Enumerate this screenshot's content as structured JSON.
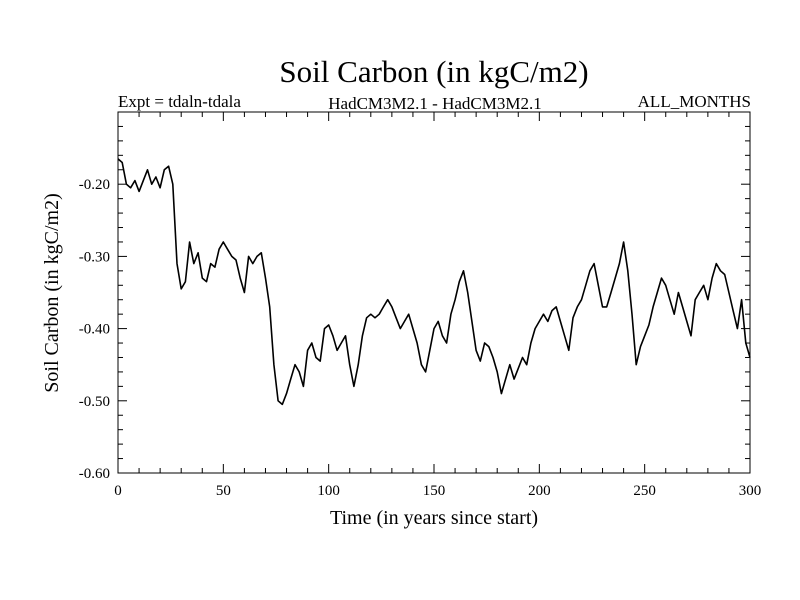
{
  "chart_data": {
    "type": "line",
    "title": "Soil Carbon (in kgC/m2)",
    "subtitle_left": "Expt = tdaln-tdala",
    "subtitle_center": "HadCM3M2.1 - HadCM3M2.1",
    "subtitle_right": "ALL_MONTHS",
    "xlabel": "Time (in years since start)",
    "ylabel": "Soil Carbon (in kgC/m2)",
    "xlim": [
      0,
      300
    ],
    "ylim": [
      -0.6,
      -0.1
    ],
    "xticks": [
      0,
      50,
      100,
      150,
      200,
      250,
      300
    ],
    "xtick_labels": [
      "0",
      "50",
      "100",
      "150",
      "200",
      "250",
      "300"
    ],
    "yticks": [
      -0.6,
      -0.5,
      -0.4,
      -0.3,
      -0.2
    ],
    "ytick_labels": [
      "-0.60",
      "-0.50",
      "-0.40",
      "-0.30",
      "-0.20"
    ],
    "series": [
      {
        "name": "Soil Carbon",
        "x": [
          0,
          2,
          4,
          6,
          8,
          10,
          12,
          14,
          16,
          18,
          20,
          22,
          24,
          26,
          28,
          30,
          32,
          34,
          36,
          38,
          40,
          42,
          44,
          46,
          48,
          50,
          52,
          54,
          56,
          58,
          60,
          62,
          64,
          66,
          68,
          70,
          72,
          74,
          76,
          78,
          80,
          82,
          84,
          86,
          88,
          90,
          92,
          94,
          96,
          98,
          100,
          102,
          104,
          106,
          108,
          110,
          112,
          114,
          116,
          118,
          120,
          122,
          124,
          126,
          128,
          130,
          132,
          134,
          136,
          138,
          140,
          142,
          144,
          146,
          148,
          150,
          152,
          154,
          156,
          158,
          160,
          162,
          164,
          166,
          168,
          170,
          172,
          174,
          176,
          178,
          180,
          182,
          184,
          186,
          188,
          190,
          192,
          194,
          196,
          198,
          200,
          202,
          204,
          206,
          208,
          210,
          212,
          214,
          216,
          218,
          220,
          222,
          224,
          226,
          228,
          230,
          232,
          234,
          236,
          238,
          240,
          242,
          244,
          246,
          248,
          250,
          252,
          254,
          256,
          258,
          260,
          262,
          264,
          266,
          268,
          270,
          272,
          274,
          276,
          278,
          280,
          282,
          284,
          286,
          288,
          290,
          292,
          294,
          296,
          298,
          300
        ],
        "values": [
          -0.165,
          -0.17,
          -0.2,
          -0.205,
          -0.195,
          -0.21,
          -0.195,
          -0.18,
          -0.2,
          -0.19,
          -0.205,
          -0.18,
          -0.175,
          -0.2,
          -0.31,
          -0.345,
          -0.335,
          -0.28,
          -0.31,
          -0.295,
          -0.33,
          -0.335,
          -0.31,
          -0.315,
          -0.29,
          -0.28,
          -0.29,
          -0.3,
          -0.305,
          -0.33,
          -0.35,
          -0.3,
          -0.31,
          -0.3,
          -0.295,
          -0.33,
          -0.37,
          -0.45,
          -0.5,
          -0.505,
          -0.49,
          -0.47,
          -0.45,
          -0.46,
          -0.48,
          -0.43,
          -0.42,
          -0.44,
          -0.445,
          -0.4,
          -0.395,
          -0.41,
          -0.43,
          -0.42,
          -0.41,
          -0.45,
          -0.48,
          -0.45,
          -0.41,
          -0.385,
          -0.38,
          -0.385,
          -0.38,
          -0.37,
          -0.36,
          -0.37,
          -0.385,
          -0.4,
          -0.39,
          -0.38,
          -0.4,
          -0.42,
          -0.45,
          -0.46,
          -0.43,
          -0.4,
          -0.39,
          -0.41,
          -0.42,
          -0.38,
          -0.36,
          -0.335,
          -0.32,
          -0.35,
          -0.39,
          -0.43,
          -0.445,
          -0.42,
          -0.425,
          -0.44,
          -0.46,
          -0.49,
          -0.47,
          -0.45,
          -0.47,
          -0.455,
          -0.44,
          -0.45,
          -0.42,
          -0.4,
          -0.39,
          -0.38,
          -0.39,
          -0.375,
          -0.37,
          -0.39,
          -0.41,
          -0.43,
          -0.385,
          -0.37,
          -0.36,
          -0.34,
          -0.32,
          -0.31,
          -0.34,
          -0.37,
          -0.37,
          -0.35,
          -0.33,
          -0.31,
          -0.28,
          -0.32,
          -0.38,
          -0.45,
          -0.425,
          -0.41,
          -0.395,
          -0.37,
          -0.35,
          -0.33,
          -0.34,
          -0.36,
          -0.38,
          -0.35,
          -0.37,
          -0.39,
          -0.41,
          -0.36,
          -0.35,
          -0.34,
          -0.36,
          -0.33,
          -0.31,
          -0.32,
          -0.325,
          -0.35,
          -0.375,
          -0.4,
          -0.36,
          -0.42,
          -0.44
        ]
      }
    ]
  }
}
